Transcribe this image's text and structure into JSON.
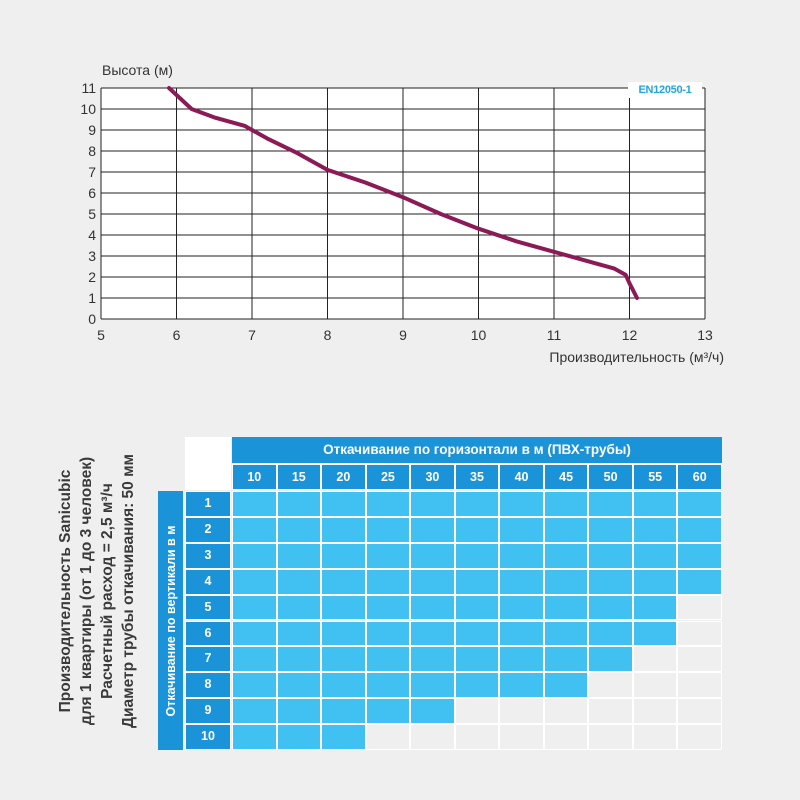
{
  "chart_data": {
    "type": "line",
    "ylabel": "Высота (м)",
    "xlabel": "Производительность (м³/ч)",
    "badge": "EN12050-1",
    "xlim": [
      5,
      13
    ],
    "ylim": [
      0,
      11
    ],
    "xticks": [
      "5",
      "6",
      "7",
      "8",
      "9",
      "10",
      "11",
      "12",
      "13"
    ],
    "yticks": [
      "0",
      "1",
      "2",
      "3",
      "4",
      "5",
      "6",
      "7",
      "8",
      "9",
      "10",
      "11"
    ],
    "grid": true,
    "line_color": "#8b1a55",
    "series": [
      {
        "x": [
          5.9,
          6.05,
          6.2,
          6.5,
          6.9,
          7.2,
          7.6,
          8.0,
          8.5,
          9.0,
          9.5,
          10.0,
          10.5,
          11.0,
          11.5,
          11.8,
          11.95,
          12.0,
          12.1
        ],
        "y": [
          11.0,
          10.5,
          10.0,
          9.6,
          9.2,
          8.6,
          7.9,
          7.1,
          6.5,
          5.8,
          5.0,
          4.3,
          3.7,
          3.2,
          2.7,
          2.4,
          2.1,
          1.7,
          1.0
        ]
      }
    ]
  },
  "table": {
    "rotated_lines": [
      "Производительность Sanicubic",
      "для 1 квартиры (от 1 до 3 человек)",
      "Расчетный расход = 2,5 м³/ч",
      "Диаметр трубы откачивания: 50 мм"
    ],
    "vertical_header": "Откачивание по вертикали в м",
    "horizontal_header": "Откачивание по горизонтали  в м (ПВХ-трубы)",
    "columns": [
      "10",
      "15",
      "20",
      "25",
      "30",
      "35",
      "40",
      "45",
      "50",
      "55",
      "60"
    ],
    "rows": [
      "1",
      "2",
      "3",
      "4",
      "5",
      "6",
      "7",
      "8",
      "9",
      "10"
    ],
    "filled_count_per_row": [
      11,
      11,
      11,
      11,
      10,
      10,
      9,
      8,
      5,
      3
    ],
    "fill_color": "#41c0f2",
    "header_color": "#1a93d8"
  }
}
